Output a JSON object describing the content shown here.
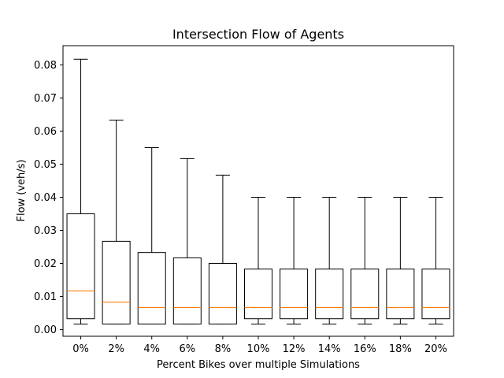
{
  "chart_data": {
    "type": "boxplot",
    "title": "Intersection Flow of Agents",
    "xlabel": "Percent Bikes over multiple Simulations",
    "ylabel": "Flow (veh/s)",
    "ylim": [
      -0.002,
      0.0858
    ],
    "yticks": [
      "0.00",
      "0.01",
      "0.02",
      "0.03",
      "0.04",
      "0.05",
      "0.06",
      "0.07",
      "0.08"
    ],
    "ytick_values": [
      0.0,
      0.01,
      0.02,
      0.03,
      0.04,
      0.05,
      0.06,
      0.07,
      0.08
    ],
    "categories": [
      "0%",
      "2%",
      "4%",
      "6%",
      "8%",
      "10%",
      "12%",
      "14%",
      "16%",
      "18%",
      "20%"
    ],
    "grid": false,
    "colors": {
      "box": "#000000",
      "median": "#ff7f0e",
      "whisker": "#000000"
    },
    "boxes": [
      {
        "whisker_low": 0.0017,
        "q1": 0.0033,
        "median": 0.0117,
        "q3": 0.035,
        "whisker_high": 0.0817
      },
      {
        "whisker_low": 0.0017,
        "q1": 0.0017,
        "median": 0.0083,
        "q3": 0.0267,
        "whisker_high": 0.0633
      },
      {
        "whisker_low": 0.0017,
        "q1": 0.0017,
        "median": 0.0067,
        "q3": 0.0233,
        "whisker_high": 0.055
      },
      {
        "whisker_low": 0.0017,
        "q1": 0.0017,
        "median": 0.0067,
        "q3": 0.0217,
        "whisker_high": 0.0517
      },
      {
        "whisker_low": 0.0017,
        "q1": 0.0017,
        "median": 0.0067,
        "q3": 0.02,
        "whisker_high": 0.0467
      },
      {
        "whisker_low": 0.0017,
        "q1": 0.0033,
        "median": 0.0067,
        "q3": 0.0183,
        "whisker_high": 0.04
      },
      {
        "whisker_low": 0.0017,
        "q1": 0.0033,
        "median": 0.0067,
        "q3": 0.0183,
        "whisker_high": 0.04
      },
      {
        "whisker_low": 0.0017,
        "q1": 0.0033,
        "median": 0.0067,
        "q3": 0.0183,
        "whisker_high": 0.04
      },
      {
        "whisker_low": 0.0017,
        "q1": 0.0033,
        "median": 0.0067,
        "q3": 0.0183,
        "whisker_high": 0.04
      },
      {
        "whisker_low": 0.0017,
        "q1": 0.0033,
        "median": 0.0067,
        "q3": 0.0183,
        "whisker_high": 0.04
      },
      {
        "whisker_low": 0.0017,
        "q1": 0.0033,
        "median": 0.0067,
        "q3": 0.0183,
        "whisker_high": 0.04
      }
    ]
  }
}
